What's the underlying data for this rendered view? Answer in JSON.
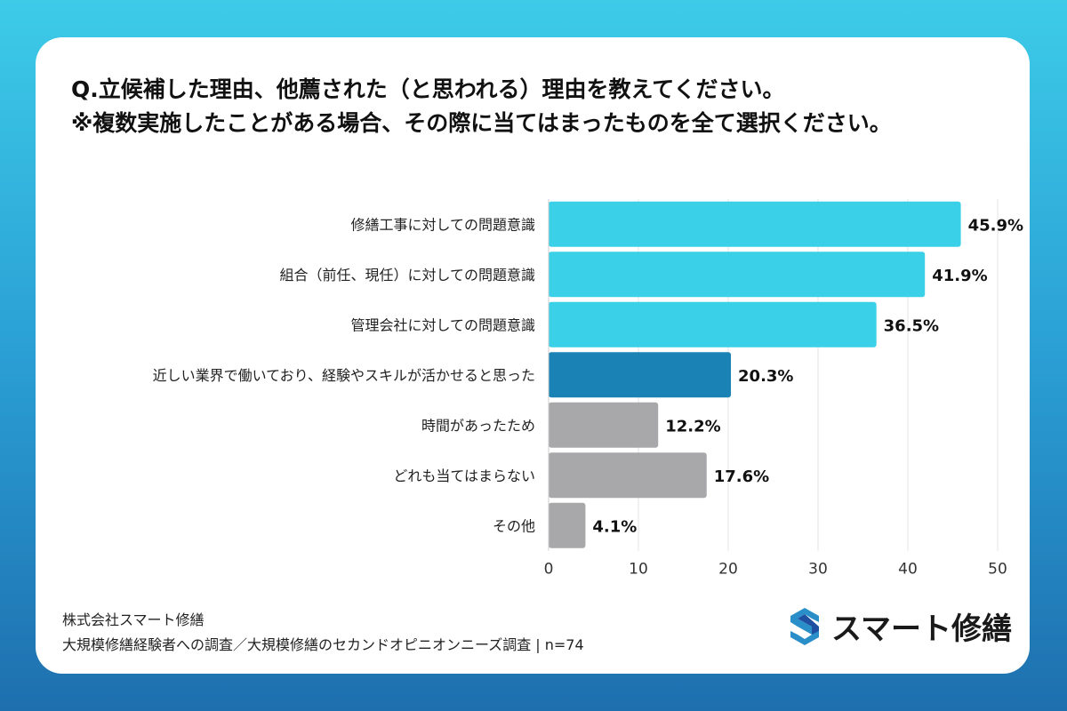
{
  "title_lines": [
    "Q.立候補した理由、他薦された（と思われる）理由を教えてください。",
    "※複数実施したことがある場合、その際に当てはまったものを全て選択ください。"
  ],
  "footer": {
    "company": "株式会社スマート修繕",
    "survey": "大規模修繕経験者への調査／大規模修繕のセカンドオピニオンニーズ調査 | n=74"
  },
  "logo": {
    "text": "スマート修繕",
    "icon": "s-logo-icon"
  },
  "colors": {
    "highlight": "#3ad0e8",
    "accent": "#1a82b5",
    "neutral": "#a8a7aa"
  },
  "chart_data": {
    "type": "bar",
    "orientation": "horizontal",
    "categories": [
      "修繕工事に対しての問題意識",
      "組合（前任、現任）に対しての問題意識",
      "管理会社に対しての問題意識",
      "近しい業界で働いており、経験やスキルが活かせると思った",
      "時間があったため",
      "どれも当てはまらない",
      "その他"
    ],
    "values": [
      45.9,
      41.9,
      36.5,
      20.3,
      12.2,
      17.6,
      4.1
    ],
    "labels": [
      "45.9%",
      "41.9%",
      "36.5%",
      "20.3%",
      "12.2%",
      "17.6%",
      "4.1%"
    ],
    "bar_colors": [
      "#3ad0e8",
      "#3ad0e8",
      "#3ad0e8",
      "#1a82b5",
      "#a8a7aa",
      "#a8a7aa",
      "#a8a7aa"
    ],
    "xlim": [
      0,
      50
    ],
    "xticks": [
      0,
      10,
      20,
      30,
      40,
      50
    ],
    "grid": true,
    "legend": "none"
  }
}
